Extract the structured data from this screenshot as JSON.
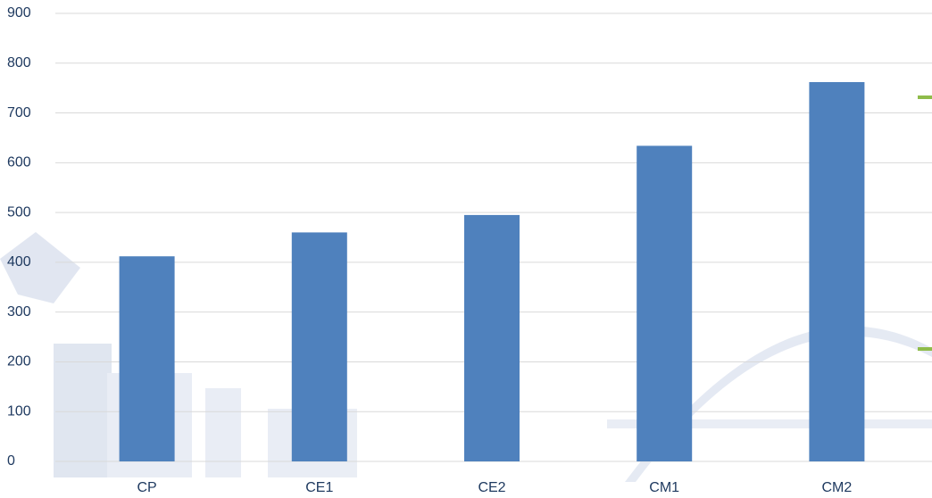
{
  "chart_data": {
    "type": "bar",
    "categories": [
      "CP",
      "CE1",
      "CE2",
      "CM1",
      "CM2"
    ],
    "values": [
      412,
      460,
      495,
      634,
      762
    ],
    "color": "#4f81bd",
    "ylim": [
      0,
      900
    ],
    "yticks": [
      0,
      100,
      200,
      300,
      400,
      500,
      600,
      700,
      800,
      900
    ],
    "grid": true
  }
}
